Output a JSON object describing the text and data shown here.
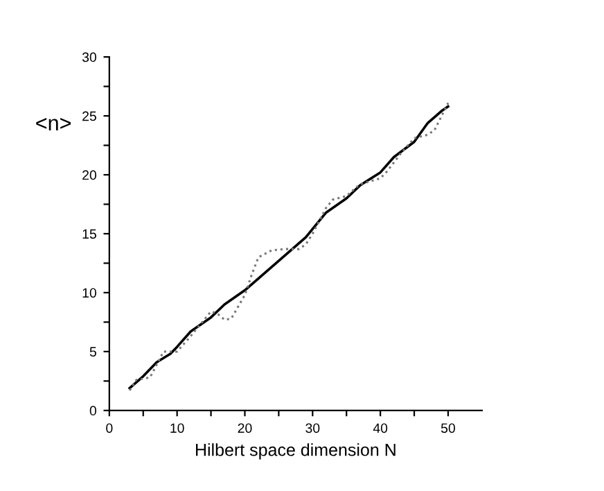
{
  "chart_data": {
    "type": "line",
    "xlabel": "Hilbert space dimension N",
    "ylabel": "<n>",
    "xlim": [
      0,
      55
    ],
    "ylim": [
      0,
      30
    ],
    "xticks": [
      0,
      {
        "value": 5,
        "label": null
      },
      10,
      {
        "value": 15,
        "label": null
      },
      20,
      {
        "value": 25,
        "label": null
      },
      30,
      {
        "value": 35,
        "label": null
      },
      40,
      {
        "value": 45,
        "label": null
      },
      50
    ],
    "yticks": [
      0,
      {
        "value": 2.5,
        "label": null
      },
      5,
      {
        "value": 7.5,
        "label": null
      },
      10,
      {
        "value": 12.5,
        "label": null
      },
      15,
      {
        "value": 17.5,
        "label": null
      },
      20,
      {
        "value": 22.5,
        "label": null
      },
      25,
      {
        "value": 27.5,
        "label": null
      },
      30
    ],
    "grid": false,
    "legend": false,
    "series": [
      {
        "color": "#000000",
        "line_style": "solid",
        "x": [
          3,
          5,
          7,
          9,
          10,
          12,
          15,
          17,
          20,
          22,
          25,
          27,
          29,
          30,
          32,
          35,
          37,
          40,
          42,
          45,
          47,
          49,
          50
        ],
        "values": [
          1.9,
          2.9,
          4.1,
          4.8,
          5.4,
          6.7,
          7.9,
          9.0,
          10.2,
          11.2,
          12.7,
          13.7,
          14.7,
          15.4,
          16.8,
          18.0,
          19.1,
          20.2,
          21.5,
          22.8,
          24.4,
          25.4,
          25.8
        ]
      },
      {
        "color": "#777777",
        "line_style": "dotted",
        "x": [
          3,
          4,
          6,
          8,
          10,
          12,
          15,
          16,
          17,
          18,
          20,
          21,
          22,
          24,
          26,
          28,
          29,
          30,
          32,
          33,
          35,
          37,
          40,
          41,
          43,
          45,
          47,
          48,
          50
        ],
        "values": [
          1.7,
          2.6,
          2.8,
          5.0,
          5.0,
          6.3,
          8.4,
          8.2,
          7.7,
          7.8,
          9.8,
          11.5,
          13.0,
          13.6,
          13.7,
          13.7,
          14.1,
          15.0,
          17.2,
          17.9,
          18.2,
          19.2,
          19.7,
          20.3,
          21.8,
          23.1,
          23.4,
          23.8,
          26.1
        ]
      }
    ]
  }
}
